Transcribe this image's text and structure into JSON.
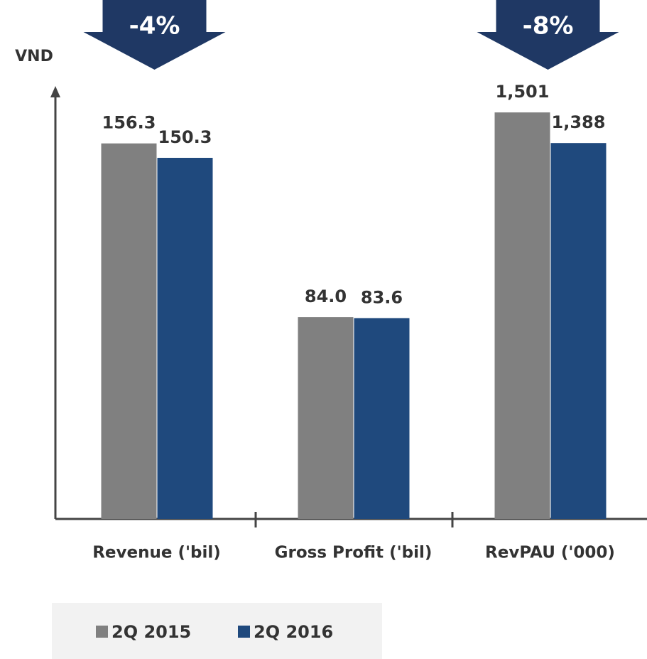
{
  "chart_data": {
    "type": "bar",
    "y_axis_label": "VND",
    "categories": [
      "Revenue ('bil)",
      "Gross Profit ('bil)",
      "RevPAU ('000)"
    ],
    "category_axis": [
      "y",
      "y",
      "y2"
    ],
    "series": [
      {
        "name": "2Q 2015",
        "color": "#808080",
        "values": [
          156.3,
          84.0,
          1501
        ],
        "value_labels": [
          "156.3",
          "84.0",
          "1,501"
        ]
      },
      {
        "name": "2Q 2016",
        "color": "#1f497d",
        "values": [
          150.3,
          83.6,
          1388
        ],
        "value_labels": [
          "150.3",
          "83.6",
          "1,388"
        ]
      }
    ],
    "ylim": [
      0,
      179
    ],
    "y2lim": [
      0,
      1588
    ],
    "annotations": [
      "-4%",
      "-8%"
    ],
    "annotation_color": "#1f3864",
    "legend": "bottom"
  }
}
